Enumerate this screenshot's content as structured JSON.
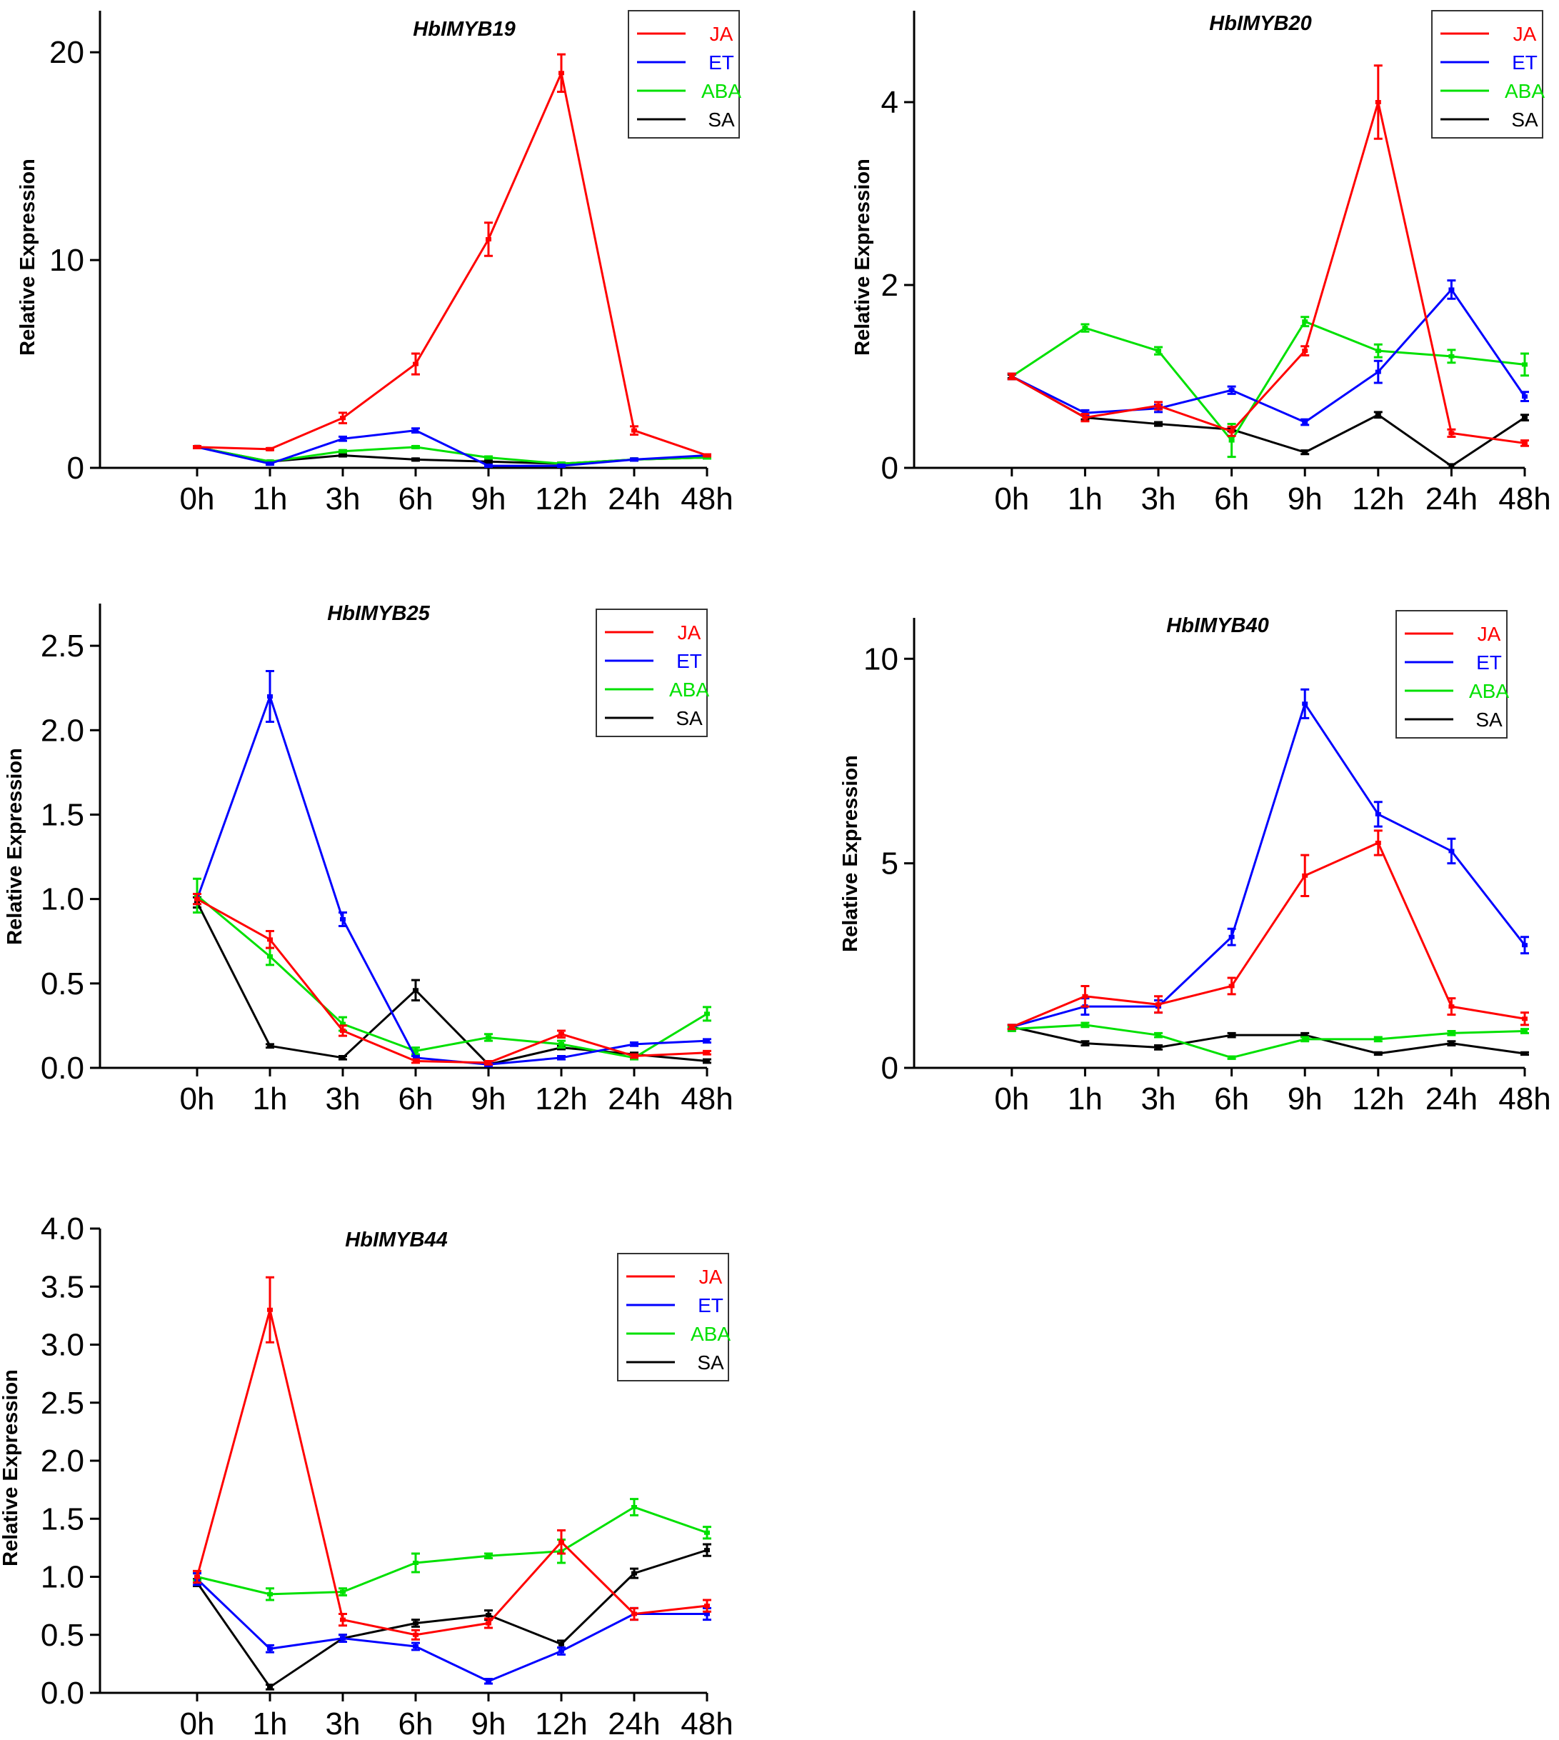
{
  "colors": {
    "JA": "#ff0000",
    "ET": "#0000ff",
    "ABA": "#00e000",
    "SA": "#000000"
  },
  "chart_data": [
    {
      "type": "line",
      "title": "HbIMYB19",
      "ylabel": "Relative Expression",
      "xlabel": "",
      "categories": [
        "0h",
        "1h",
        "3h",
        "6h",
        "9h",
        "12h",
        "24h",
        "48h"
      ],
      "ylim": [
        0,
        22
      ],
      "yticks": [
        "0",
        "10",
        "20"
      ],
      "ytick_values": [
        0,
        10,
        20
      ],
      "legend": [
        "JA",
        "ET",
        "ABA",
        "SA"
      ],
      "series": [
        {
          "name": "JA",
          "values": [
            1.0,
            0.9,
            2.4,
            5.0,
            11.0,
            19.0,
            1.8,
            0.6
          ],
          "errors": [
            0.05,
            0.05,
            0.25,
            0.5,
            0.8,
            0.9,
            0.2,
            0.05
          ]
        },
        {
          "name": "ET",
          "values": [
            1.0,
            0.2,
            1.4,
            1.8,
            0.1,
            0.1,
            0.4,
            0.6
          ],
          "errors": [
            0.05,
            0.05,
            0.1,
            0.1,
            0.05,
            0.05,
            0.05,
            0.05
          ]
        },
        {
          "name": "ABA",
          "values": [
            1.0,
            0.3,
            0.8,
            1.0,
            0.5,
            0.2,
            0.4,
            0.5
          ],
          "errors": [
            0.05,
            0.05,
            0.05,
            0.05,
            0.05,
            0.05,
            0.05,
            0.05
          ]
        },
        {
          "name": "SA",
          "values": [
            1.0,
            0.3,
            0.6,
            0.4,
            0.3,
            0.2,
            0.4,
            0.5
          ],
          "errors": [
            0.05,
            0.05,
            0.05,
            0.05,
            0.05,
            0.05,
            0.05,
            0.05
          ]
        }
      ]
    },
    {
      "type": "line",
      "title": "HbIMYB20",
      "ylabel": "Relative Expression",
      "xlabel": "",
      "categories": [
        "0h",
        "1h",
        "3h",
        "6h",
        "9h",
        "12h",
        "24h",
        "48h"
      ],
      "ylim": [
        0,
        5
      ],
      "yticks": [
        "0",
        "2",
        "4"
      ],
      "ytick_values": [
        0,
        2,
        4
      ],
      "legend": [
        "JA",
        "ET",
        "ABA",
        "SA"
      ],
      "series": [
        {
          "name": "JA",
          "values": [
            1.0,
            0.55,
            0.68,
            0.4,
            1.28,
            4.0,
            0.38,
            0.27
          ],
          "errors": [
            0.03,
            0.04,
            0.04,
            0.05,
            0.05,
            0.4,
            0.04,
            0.03
          ]
        },
        {
          "name": "ET",
          "values": [
            1.0,
            0.6,
            0.65,
            0.85,
            0.5,
            1.05,
            1.95,
            0.78
          ],
          "errors": [
            0.03,
            0.03,
            0.04,
            0.04,
            0.03,
            0.12,
            0.1,
            0.05
          ]
        },
        {
          "name": "ABA",
          "values": [
            1.0,
            1.53,
            1.28,
            0.3,
            1.6,
            1.28,
            1.22,
            1.13
          ],
          "errors": [
            0.03,
            0.04,
            0.04,
            0.18,
            0.05,
            0.07,
            0.07,
            0.12
          ]
        },
        {
          "name": "SA",
          "values": [
            1.0,
            0.55,
            0.48,
            0.42,
            0.17,
            0.58,
            0.02,
            0.55
          ],
          "errors": [
            0.02,
            0.02,
            0.02,
            0.02,
            0.02,
            0.03,
            0.02,
            0.03
          ]
        }
      ]
    },
    {
      "type": "line",
      "title": "HbIMYB25",
      "ylabel": "Relative Expression",
      "xlabel": "",
      "categories": [
        "0h",
        "1h",
        "3h",
        "6h",
        "9h",
        "12h",
        "24h",
        "48h"
      ],
      "ylim": [
        0,
        2.75
      ],
      "yticks": [
        "0.0",
        "0.5",
        "1.0",
        "1.5",
        "2.0",
        "2.5"
      ],
      "ytick_values": [
        0,
        0.5,
        1.0,
        1.5,
        2.0,
        2.5
      ],
      "legend": [
        "JA",
        "ET",
        "ABA",
        "SA"
      ],
      "series": [
        {
          "name": "JA",
          "values": [
            1.0,
            0.76,
            0.22,
            0.04,
            0.03,
            0.2,
            0.07,
            0.09
          ],
          "errors": [
            0.03,
            0.05,
            0.03,
            0.01,
            0.01,
            0.02,
            0.01,
            0.01
          ]
        },
        {
          "name": "ET",
          "values": [
            1.0,
            2.2,
            0.88,
            0.06,
            0.02,
            0.06,
            0.14,
            0.16
          ],
          "errors": [
            0.03,
            0.15,
            0.04,
            0.01,
            0.01,
            0.01,
            0.01,
            0.01
          ]
        },
        {
          "name": "ABA",
          "values": [
            1.02,
            0.66,
            0.26,
            0.1,
            0.18,
            0.14,
            0.06,
            0.32
          ],
          "errors": [
            0.1,
            0.05,
            0.04,
            0.02,
            0.02,
            0.02,
            0.01,
            0.04
          ]
        },
        {
          "name": "SA",
          "values": [
            0.98,
            0.13,
            0.06,
            0.46,
            0.02,
            0.12,
            0.08,
            0.04
          ],
          "errors": [
            0.03,
            0.01,
            0.01,
            0.06,
            0.01,
            0.01,
            0.01,
            0.01
          ]
        }
      ]
    },
    {
      "type": "line",
      "title": "HbIMYB40",
      "ylabel": "Relative Expression",
      "xlabel": "",
      "categories": [
        "0h",
        "1h",
        "3h",
        "6h",
        "9h",
        "12h",
        "24h",
        "48h"
      ],
      "ylim": [
        0,
        11
      ],
      "yticks": [
        "0",
        "5",
        "10"
      ],
      "ytick_values": [
        0,
        5,
        10
      ],
      "legend": [
        "JA",
        "ET",
        "ABA",
        "SA"
      ],
      "series": [
        {
          "name": "JA",
          "values": [
            1.0,
            1.75,
            1.55,
            2.0,
            4.7,
            5.5,
            1.5,
            1.2
          ],
          "errors": [
            0.05,
            0.25,
            0.2,
            0.2,
            0.5,
            0.3,
            0.2,
            0.15
          ]
        },
        {
          "name": "ET",
          "values": [
            1.0,
            1.5,
            1.5,
            3.2,
            8.9,
            6.2,
            5.3,
            3.0
          ],
          "errors": [
            0.05,
            0.2,
            0.15,
            0.2,
            0.35,
            0.3,
            0.3,
            0.2
          ]
        },
        {
          "name": "ABA",
          "values": [
            0.95,
            1.05,
            0.8,
            0.25,
            0.7,
            0.7,
            0.85,
            0.9
          ],
          "errors": [
            0.05,
            0.05,
            0.05,
            0.03,
            0.05,
            0.05,
            0.05,
            0.05
          ]
        },
        {
          "name": "SA",
          "values": [
            1.0,
            0.6,
            0.5,
            0.8,
            0.8,
            0.35,
            0.6,
            0.35
          ],
          "errors": [
            0.05,
            0.05,
            0.05,
            0.05,
            0.05,
            0.03,
            0.05,
            0.03
          ]
        }
      ]
    },
    {
      "type": "line",
      "title": "HbIMYB44",
      "ylabel": "Relative Expression",
      "xlabel": "",
      "categories": [
        "0h",
        "1h",
        "3h",
        "6h",
        "9h",
        "12h",
        "24h",
        "48h"
      ],
      "ylim": [
        0,
        4.0
      ],
      "yticks": [
        "0.0",
        "0.5",
        "1.0",
        "1.5",
        "2.0",
        "2.5",
        "3.0",
        "3.5",
        "4.0"
      ],
      "ytick_values": [
        0,
        0.5,
        1.0,
        1.5,
        2.0,
        2.5,
        3.0,
        3.5,
        4.0
      ],
      "legend": [
        "JA",
        "ET",
        "ABA",
        "SA"
      ],
      "series": [
        {
          "name": "JA",
          "values": [
            1.0,
            3.3,
            0.63,
            0.5,
            0.6,
            1.3,
            0.68,
            0.75
          ],
          "errors": [
            0.05,
            0.28,
            0.05,
            0.04,
            0.04,
            0.1,
            0.05,
            0.05
          ]
        },
        {
          "name": "ET",
          "values": [
            0.98,
            0.38,
            0.47,
            0.4,
            0.1,
            0.36,
            0.68,
            0.68
          ],
          "errors": [
            0.05,
            0.03,
            0.03,
            0.03,
            0.02,
            0.03,
            0.05,
            0.05
          ]
        },
        {
          "name": "ABA",
          "values": [
            1.0,
            0.85,
            0.87,
            1.12,
            1.18,
            1.22,
            1.6,
            1.38
          ],
          "errors": [
            0.03,
            0.05,
            0.03,
            0.08,
            0.02,
            0.1,
            0.07,
            0.05
          ]
        },
        {
          "name": "SA",
          "values": [
            0.95,
            0.05,
            0.47,
            0.6,
            0.67,
            0.42,
            1.03,
            1.23
          ],
          "errors": [
            0.03,
            0.02,
            0.03,
            0.03,
            0.04,
            0.03,
            0.04,
            0.05
          ]
        }
      ]
    }
  ]
}
